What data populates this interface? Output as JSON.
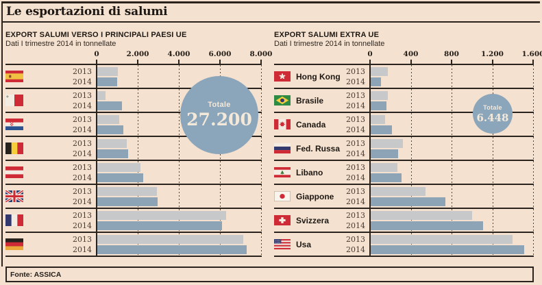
{
  "title": "Le esportazioni di salumi",
  "source": "Fonte: ASSICA",
  "colors": {
    "background": "#f5e1cf",
    "bar_2013": "#c7c8c9",
    "bar_2014": "#8da4b6",
    "circle": "#8ba5ba",
    "line": "#2a231d"
  },
  "chart_data": [
    {
      "type": "bar",
      "title": "EXPORT SALUMI VERSO I PRINCIPALI PAESI UE",
      "subtitle": "Dati I trimestre 2014 in tonnellate",
      "unit": "tonnellate",
      "axis_ticks": [
        "0",
        "2.000",
        "4.000",
        "6.000",
        "8.000"
      ],
      "xlim": [
        0,
        8000
      ],
      "grid": "dotted-vertical",
      "total_label": "Totale",
      "total_value": "27.200",
      "categories": [
        "Spagna",
        "Malta",
        "Croazia",
        "Belgio",
        "Austria",
        "Regno Unito",
        "Francia",
        "Germania"
      ],
      "flags": [
        "spagna",
        "malta",
        "croazia",
        "belgio",
        "austria",
        "regno-unito",
        "francia",
        "germania"
      ],
      "show_category_labels": false,
      "series": [
        {
          "name": "2013",
          "values": [
            1000,
            400,
            1080,
            1420,
            2100,
            2900,
            6250,
            7100
          ]
        },
        {
          "name": "2014",
          "values": [
            950,
            1200,
            1250,
            1490,
            2240,
            2920,
            6050,
            7250
          ]
        }
      ]
    },
    {
      "type": "bar",
      "title": "EXPORT SALUMI EXTRA UE",
      "subtitle": "Dati I trimestre 2014 in tonnellate",
      "unit": "tonnellate",
      "axis_ticks": [
        "0",
        "400",
        "800",
        "1.200",
        "1.600"
      ],
      "xlim": [
        0,
        1600
      ],
      "grid": "dotted-vertical",
      "total_label": "Totale",
      "total_value": "6.448",
      "categories": [
        "Hong Kong",
        "Brasile",
        "Canada",
        "Fed. Russa",
        "Libano",
        "Giappone",
        "Svizzera",
        "Usa"
      ],
      "flags": [
        "hong-kong",
        "brasile",
        "canada",
        "fed-russa",
        "libano",
        "giappone",
        "svizzera",
        "usa"
      ],
      "show_category_labels": true,
      "series": [
        {
          "name": "2013",
          "values": [
            170,
            170,
            140,
            315,
            260,
            540,
            995,
            1390
          ]
        },
        {
          "name": "2014",
          "values": [
            100,
            155,
            210,
            270,
            305,
            730,
            1100,
            1505
          ]
        }
      ]
    }
  ]
}
